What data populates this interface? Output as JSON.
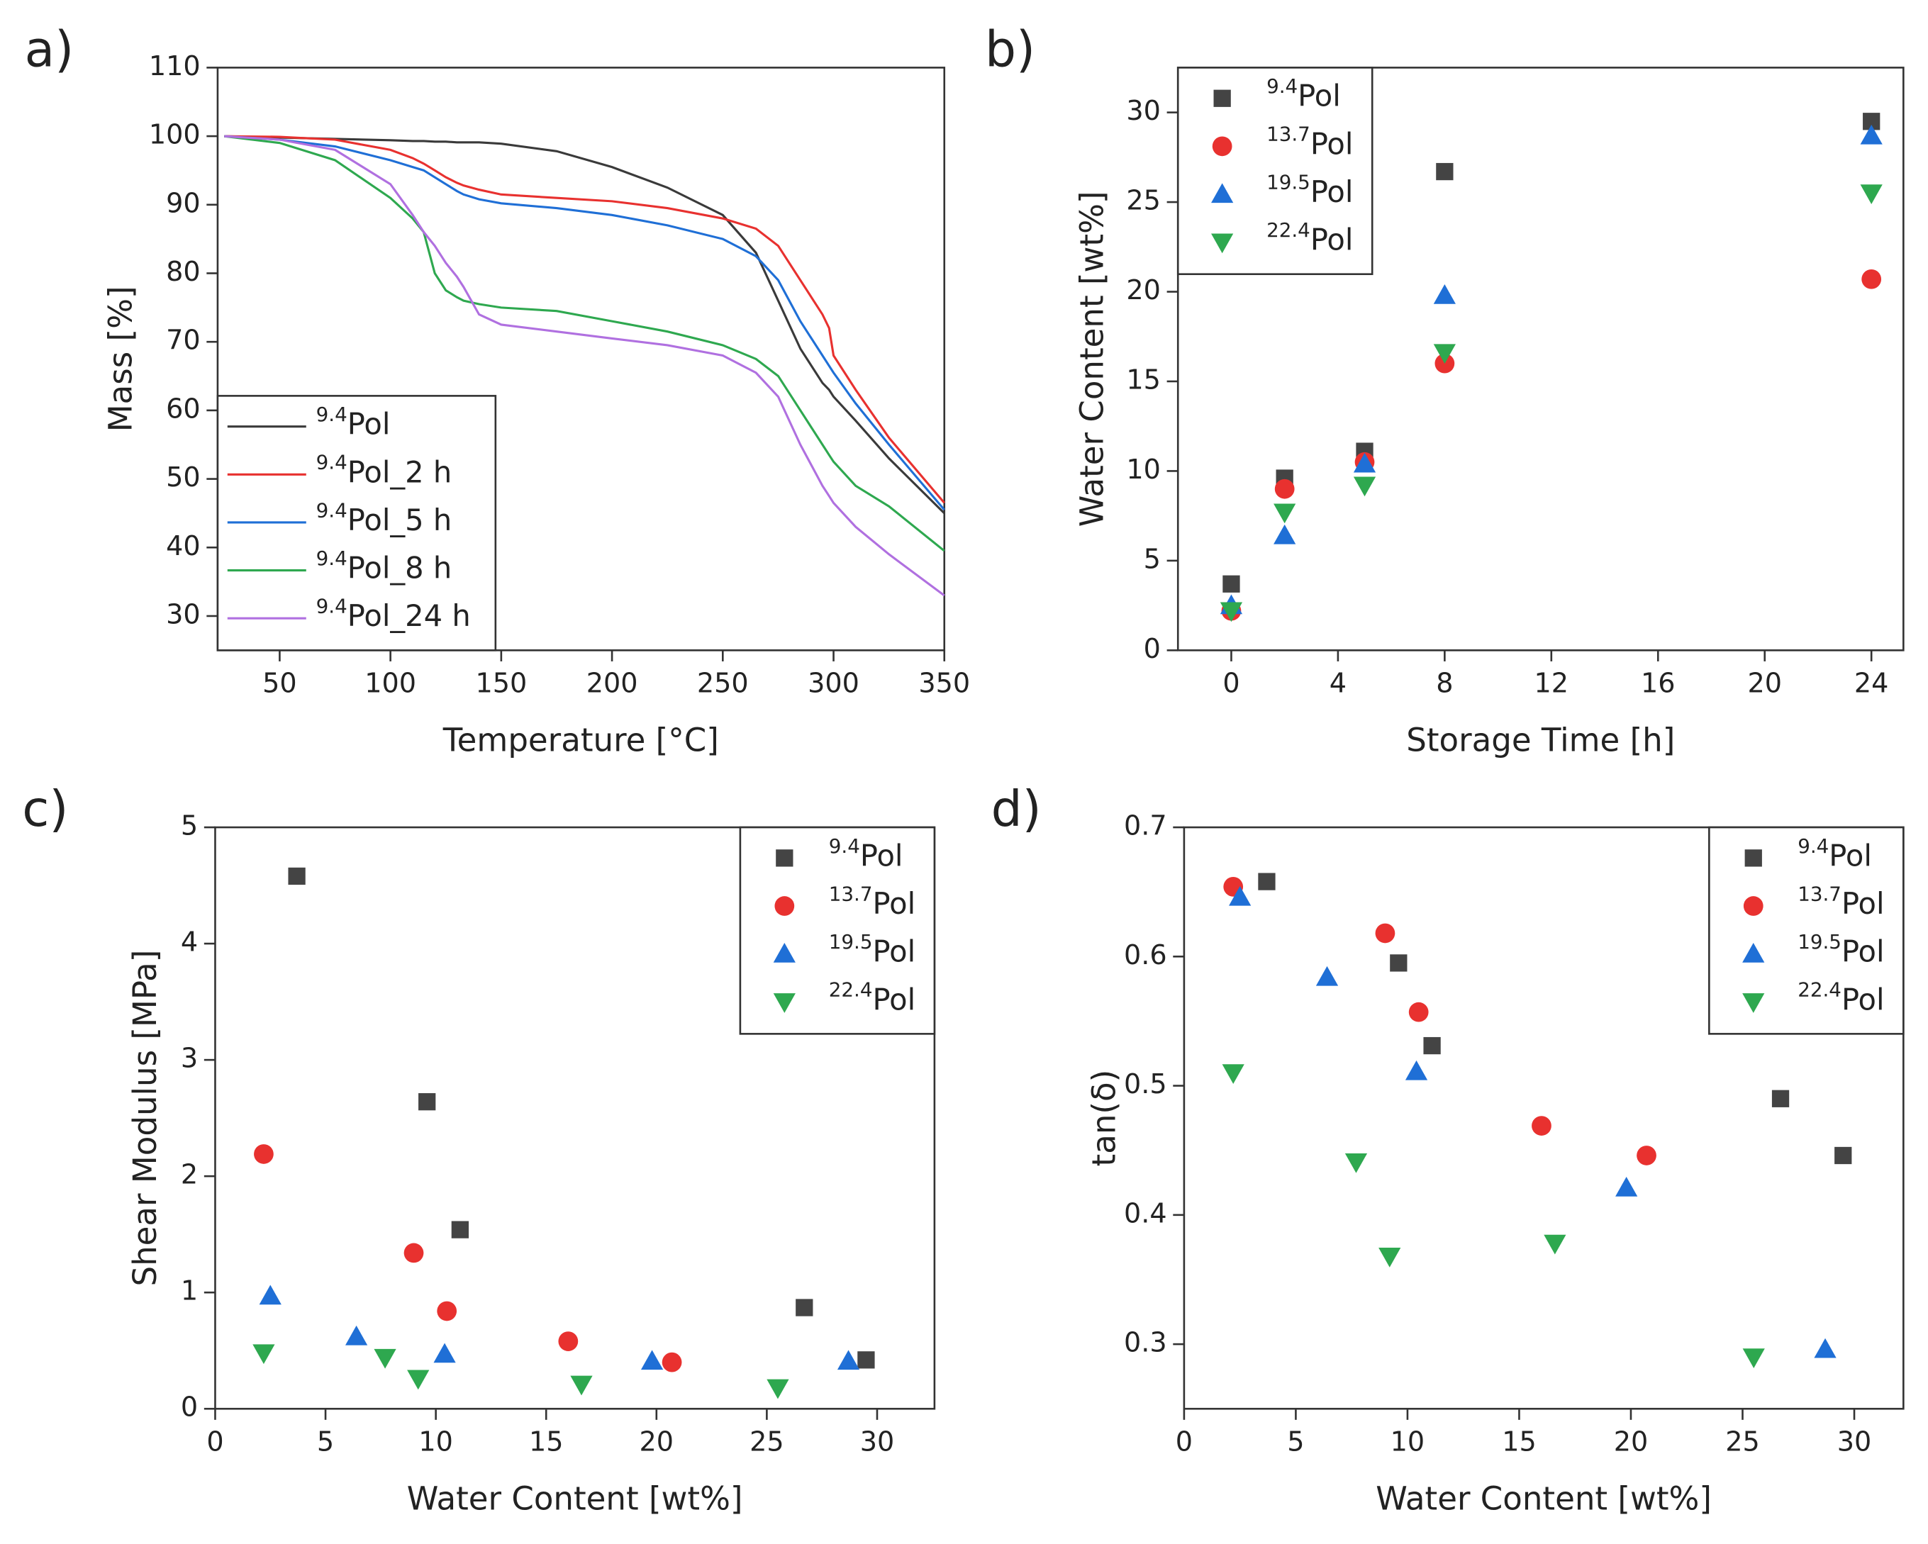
{
  "chart_data": [
    {
      "type": "line",
      "panel_label": "a)",
      "xlabel": "Temperature [°C]",
      "ylabel": "Mass [%]",
      "x": [
        25,
        50,
        75,
        100,
        110,
        115,
        120,
        125,
        130,
        133,
        140,
        150,
        175,
        200,
        225,
        250,
        265,
        275,
        285,
        295,
        298,
        300,
        310,
        325,
        350
      ],
      "series": [
        {
          "name": "9.4Pol",
          "color": "#3a3a3a",
          "values": [
            100,
            99.8,
            99.6,
            99.4,
            99.3,
            99.3,
            99.2,
            99.2,
            99.1,
            99.1,
            99.1,
            98.9,
            97.8,
            95.5,
            92.5,
            88.5,
            83,
            76,
            69,
            64,
            63,
            62,
            58.5,
            53,
            45
          ]
        },
        {
          "name": "9.4Pol_2 h",
          "color": "#e8312f",
          "values": [
            100,
            99.9,
            99.5,
            98,
            96.8,
            96,
            95,
            94,
            93.2,
            92.8,
            92.2,
            91.5,
            91,
            90.5,
            89.5,
            88,
            86.5,
            84,
            79,
            74,
            72,
            68,
            63,
            56,
            46.5
          ]
        },
        {
          "name": "9.4Pol_5 h",
          "color": "#1f6fd6",
          "values": [
            100,
            99.5,
            98.5,
            96.5,
            95.5,
            95,
            94,
            93,
            92,
            91.5,
            90.8,
            90.2,
            89.5,
            88.5,
            87,
            85,
            82.5,
            79,
            73,
            68,
            66.5,
            65.5,
            61,
            55,
            45.5
          ]
        },
        {
          "name": "9.4Pol_8 h",
          "color": "#2ea84f",
          "values": [
            100,
            99,
            96.5,
            91,
            88,
            86,
            80,
            77.5,
            76.5,
            76,
            75.5,
            75,
            74.5,
            73,
            71.5,
            69.5,
            67.5,
            65,
            60,
            55,
            53.5,
            52.5,
            49,
            46,
            39.5
          ]
        },
        {
          "name": "9.4Pol_24 h",
          "color": "#b070e0",
          "values": [
            100,
            99.5,
            98,
            93,
            88.5,
            86,
            84,
            81.5,
            79.5,
            78,
            74,
            72.5,
            71.5,
            70.5,
            69.5,
            68,
            65.5,
            62,
            55,
            49,
            47.5,
            46.5,
            43,
            39,
            33
          ]
        }
      ],
      "xlim": [
        22,
        350
      ],
      "xticks": [
        50,
        100,
        150,
        200,
        250,
        300,
        350
      ],
      "ylim": [
        25,
        110
      ],
      "yticks": [
        30,
        40,
        50,
        60,
        70,
        80,
        90,
        100,
        110
      ],
      "legend": "lower left"
    },
    {
      "type": "scatter",
      "panel_label": "b)",
      "xlabel": "Storage Time [h]",
      "ylabel": "Water Content [wt%]",
      "series": [
        {
          "name": "9.4Pol",
          "color": "#444444",
          "marker": "square",
          "x": [
            0,
            2,
            5,
            8,
            24
          ],
          "values": [
            3.7,
            9.6,
            11.1,
            26.7,
            29.5
          ]
        },
        {
          "name": "13.7Pol",
          "color": "#e8312f",
          "marker": "circle",
          "x": [
            0,
            2,
            5,
            8,
            24
          ],
          "values": [
            2.2,
            9.0,
            10.5,
            16.0,
            20.7
          ]
        },
        {
          "name": "19.5Pol",
          "color": "#1f6fd6",
          "marker": "triangle-up",
          "x": [
            0,
            2,
            5,
            8,
            24
          ],
          "values": [
            2.5,
            6.4,
            10.4,
            19.8,
            28.7
          ]
        },
        {
          "name": "22.4Pol",
          "color": "#2ea84f",
          "marker": "triangle-down",
          "x": [
            0,
            2,
            5,
            8,
            24
          ],
          "values": [
            2.2,
            7.7,
            9.2,
            16.6,
            25.5
          ]
        }
      ],
      "xlim": [
        -2,
        25.2
      ],
      "xticks": [
        0,
        4,
        8,
        12,
        16,
        20,
        24
      ],
      "ylim": [
        0,
        32.5
      ],
      "yticks": [
        0,
        5,
        10,
        15,
        20,
        25,
        30
      ],
      "legend": "upper left"
    },
    {
      "type": "scatter",
      "panel_label": "c)",
      "xlabel": "Water Content [wt%]",
      "ylabel": "Shear Modulus [MPa]",
      "series": [
        {
          "name": "9.4Pol",
          "color": "#444444",
          "marker": "square",
          "x": [
            3.7,
            9.6,
            11.1,
            26.7,
            29.5
          ],
          "values": [
            4.58,
            2.64,
            1.54,
            0.87,
            0.42
          ]
        },
        {
          "name": "13.7Pol",
          "color": "#e8312f",
          "marker": "circle",
          "x": [
            2.2,
            9.0,
            10.5,
            16.0,
            20.7
          ],
          "values": [
            2.19,
            1.34,
            0.84,
            0.58,
            0.4
          ]
        },
        {
          "name": "19.5Pol",
          "color": "#1f6fd6",
          "marker": "triangle-up",
          "x": [
            2.5,
            6.4,
            10.4,
            19.8,
            28.7
          ],
          "values": [
            0.97,
            0.62,
            0.47,
            0.41,
            0.41
          ]
        },
        {
          "name": "22.4Pol",
          "color": "#2ea84f",
          "marker": "triangle-down",
          "x": [
            2.2,
            7.7,
            9.2,
            16.6,
            25.5
          ],
          "values": [
            0.48,
            0.44,
            0.26,
            0.21,
            0.18
          ]
        }
      ],
      "xlim": [
        0,
        32.6
      ],
      "xticks": [
        0,
        5,
        10,
        15,
        20,
        25,
        30
      ],
      "ylim": [
        0,
        5
      ],
      "yticks": [
        0,
        1,
        2,
        3,
        4,
        5
      ],
      "legend": "upper right"
    },
    {
      "type": "scatter",
      "panel_label": "d)",
      "xlabel": "Water Content [wt%]",
      "ylabel": "tan(δ)",
      "series": [
        {
          "name": "9.4Pol",
          "color": "#444444",
          "marker": "square",
          "x": [
            3.7,
            9.6,
            11.1,
            26.7,
            29.5
          ],
          "values": [
            0.658,
            0.595,
            0.531,
            0.49,
            0.446
          ]
        },
        {
          "name": "13.7Pol",
          "color": "#e8312f",
          "marker": "circle",
          "x": [
            2.2,
            9.0,
            10.5,
            16.0,
            20.7
          ],
          "values": [
            0.654,
            0.618,
            0.557,
            0.469,
            0.446
          ]
        },
        {
          "name": "19.5Pol",
          "color": "#1f6fd6",
          "marker": "triangle-up",
          "x": [
            2.5,
            6.4,
            10.4,
            19.8,
            28.7
          ],
          "values": [
            0.646,
            0.584,
            0.511,
            0.421,
            0.296
          ]
        },
        {
          "name": "22.4Pol",
          "color": "#2ea84f",
          "marker": "triangle-down",
          "x": [
            2.2,
            7.7,
            9.2,
            16.6,
            25.5
          ],
          "values": [
            0.51,
            0.441,
            0.368,
            0.378,
            0.29
          ]
        }
      ],
      "xlim": [
        0,
        32.2
      ],
      "xticks": [
        0,
        5,
        10,
        15,
        20,
        25,
        30
      ],
      "ylim": [
        0.25,
        0.7
      ],
      "yticks": [
        0.3,
        0.4,
        0.5,
        0.6,
        0.7
      ],
      "legend": "upper right"
    }
  ]
}
